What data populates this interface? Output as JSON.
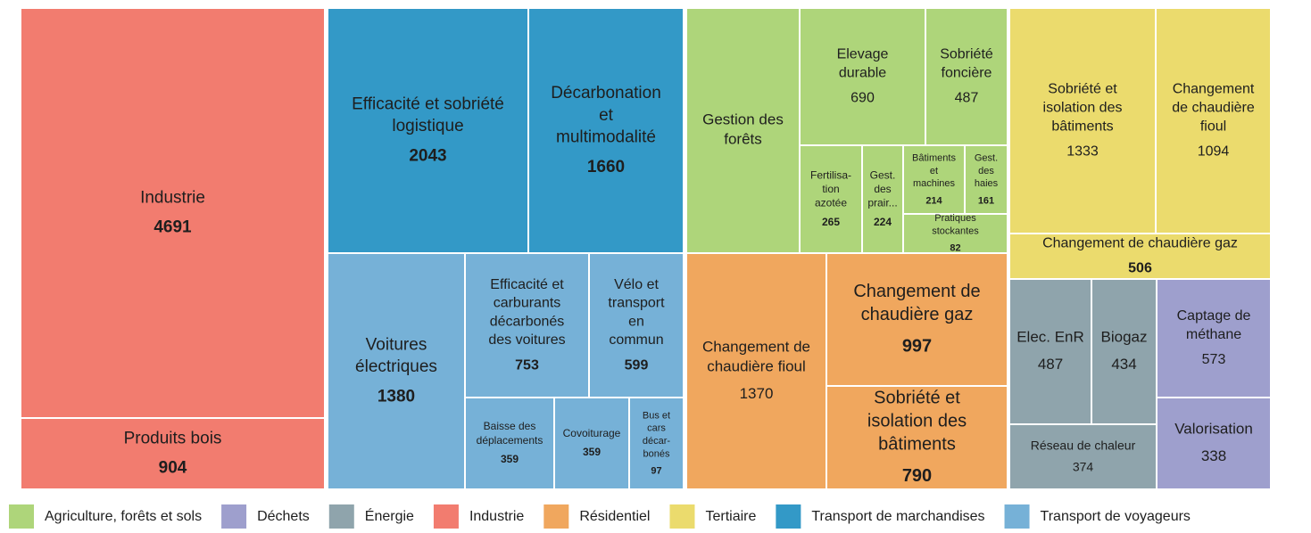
{
  "chart_data": {
    "type": "treemap",
    "series": [
      {
        "name": "Agriculture, forêts et sols",
        "color": "#aed57a",
        "labels": [
          "Gestion des\nforêts",
          "Elevage\ndurable",
          "Sobriété\nfoncière",
          "Fertilisa-\ntion\nazotée",
          "Gest.\ndes\nprair...",
          "Bâtiments\net\nmachines",
          "Gest.\ndes\nhaies",
          "Pratiques\nstockantes"
        ],
        "values": [
          1100,
          690,
          487,
          265,
          224,
          214,
          161,
          82
        ],
        "value_labels": [
          null,
          "690",
          "487",
          "265",
          "224",
          "214",
          "161",
          "82"
        ]
      },
      {
        "name": "Déchets",
        "color": "#9e9fcd",
        "labels": [
          "Captage de\nméthane",
          "Valorisation"
        ],
        "values": [
          573,
          338
        ]
      },
      {
        "name": "Énergie",
        "color": "#8fa4ac",
        "labels": [
          "Elec. EnR",
          "Biogaz",
          "Réseau de chaleur"
        ],
        "values": [
          487,
          434,
          374
        ]
      },
      {
        "name": "Industrie",
        "color": "#f27c6f",
        "labels": [
          "Industrie",
          "Produits bois"
        ],
        "values": [
          4691,
          904
        ]
      },
      {
        "name": "Résidentiel",
        "color": "#f0a75e",
        "labels": [
          "Changement de\nchaudière fioul",
          "Changement de\nchaudière gaz",
          "Sobriété et\nisolation des\nbâtiments"
        ],
        "values": [
          1370,
          997,
          790
        ]
      },
      {
        "name": "Tertiaire",
        "color": "#ebdb6d",
        "labels": [
          "Sobriété et\nisolation des\nbâtiments",
          "Changement\nde chaudière\nfioul",
          "Changement de chaudière gaz"
        ],
        "values": [
          1333,
          1094,
          506
        ]
      },
      {
        "name": "Transport de marchandises",
        "color": "#3399c7",
        "labels": [
          "Efficacité et sobriété\nlogistique",
          "Décarbonation\net\nmultimodalité"
        ],
        "values": [
          2043,
          1660
        ]
      },
      {
        "name": "Transport de voyageurs",
        "color": "#76b1d7",
        "labels": [
          "Voitures\nélectriques",
          "Efficacité et\ncarburants\ndécarbonés\ndes voitures",
          "Vélo et\ntransport\nen\ncommun",
          "Baisse des\ndéplacements",
          "Covoiturage",
          "Bus et\ncars\ndécar-\nbonés"
        ],
        "values": [
          1380,
          753,
          599,
          359,
          359,
          97
        ]
      }
    ]
  }
}
